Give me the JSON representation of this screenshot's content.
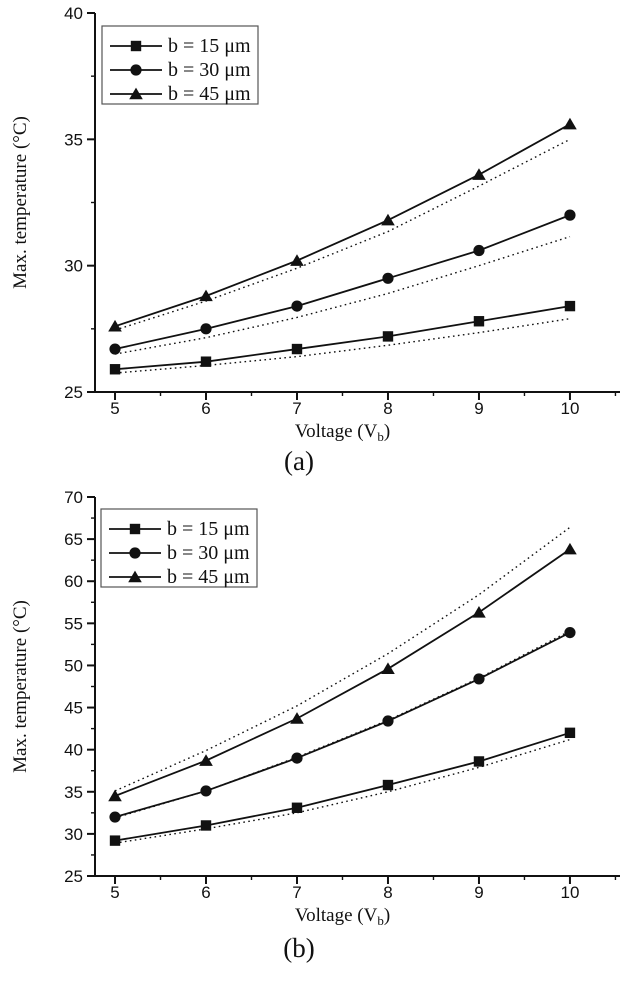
{
  "figure": {
    "background": "#ffffff",
    "ink_color": "#111111",
    "legend_border_color": "#555555"
  },
  "chart_data": [
    {
      "type": "line",
      "caption": "(a)",
      "title": "",
      "xlabel": "Voltage (V_b)",
      "ylabel": "Max. temperature (°C)",
      "x": [
        5,
        6,
        7,
        8,
        9,
        10
      ],
      "xlim": [
        4.78,
        10.55
      ],
      "ylim": [
        25,
        40
      ],
      "x_major_ticks": [
        5,
        6,
        7,
        8,
        9,
        10
      ],
      "y_major_ticks": [
        25,
        30,
        35,
        40
      ],
      "x_minor_step": 0.5,
      "y_minor_step": 2.5,
      "grid": false,
      "legend_position": "top-left-inside",
      "legend": [
        "b = 15 μm",
        "b = 30 μm",
        "b = 45 μm"
      ],
      "series": [
        {
          "name": "b = 15 μm",
          "marker": "square",
          "line": "solid",
          "values": [
            25.9,
            26.2,
            26.7,
            27.2,
            27.8,
            28.4
          ]
        },
        {
          "name": "b = 30 μm",
          "marker": "circle",
          "line": "solid",
          "values": [
            26.7,
            27.5,
            28.4,
            29.5,
            30.6,
            32.0
          ]
        },
        {
          "name": "b = 45 μm",
          "marker": "triangle",
          "line": "solid",
          "values": [
            27.6,
            28.8,
            30.2,
            31.8,
            33.6,
            35.6
          ]
        },
        {
          "name": "b = 15 μm dotted",
          "marker": "none",
          "line": "dotted",
          "values": [
            25.75,
            26.05,
            26.4,
            26.85,
            27.35,
            27.9
          ]
        },
        {
          "name": "b = 30 μm dotted",
          "marker": "none",
          "line": "dotted",
          "values": [
            26.5,
            27.15,
            27.95,
            28.9,
            30.0,
            31.15
          ]
        },
        {
          "name": "b = 45 μm dotted",
          "marker": "none",
          "line": "dotted",
          "values": [
            27.45,
            28.6,
            29.9,
            31.35,
            33.15,
            35.0
          ]
        }
      ]
    },
    {
      "type": "line",
      "caption": "(b)",
      "title": "",
      "xlabel": "Voltage (V_b)",
      "ylabel": "Max. temperature (°C)",
      "x": [
        5,
        6,
        7,
        8,
        9,
        10
      ],
      "xlim": [
        4.78,
        10.55
      ],
      "ylim": [
        25,
        70
      ],
      "x_major_ticks": [
        5,
        6,
        7,
        8,
        9,
        10
      ],
      "y_major_ticks": [
        25,
        30,
        35,
        40,
        45,
        50,
        55,
        60,
        65,
        70
      ],
      "x_minor_step": 0.5,
      "y_minor_step": 2.5,
      "grid": false,
      "legend_position": "top-left-inside",
      "legend": [
        "b = 15 μm",
        "b = 30 μm",
        "b = 45 μm"
      ],
      "series": [
        {
          "name": "b = 15 μm",
          "marker": "square",
          "line": "solid",
          "values": [
            29.2,
            31.0,
            33.1,
            35.8,
            38.6,
            42.0
          ]
        },
        {
          "name": "b = 30 μm",
          "marker": "circle",
          "line": "solid",
          "values": [
            32.0,
            35.1,
            39.0,
            43.4,
            48.4,
            53.9
          ]
        },
        {
          "name": "b = 45 μm",
          "marker": "triangle",
          "line": "solid",
          "values": [
            34.5,
            38.7,
            43.7,
            49.6,
            56.3,
            63.8
          ]
        },
        {
          "name": "b = 15 μm dotted",
          "marker": "none",
          "line": "dotted",
          "values": [
            28.9,
            30.6,
            32.5,
            35.0,
            37.9,
            41.2
          ]
        },
        {
          "name": "b = 30 μm dotted",
          "marker": "none",
          "line": "dotted",
          "values": [
            31.9,
            35.1,
            39.1,
            43.5,
            48.5,
            54.1
          ]
        },
        {
          "name": "b = 45 μm dotted",
          "marker": "none",
          "line": "dotted",
          "values": [
            35.1,
            39.9,
            45.2,
            51.4,
            58.4,
            66.4
          ]
        }
      ]
    }
  ]
}
